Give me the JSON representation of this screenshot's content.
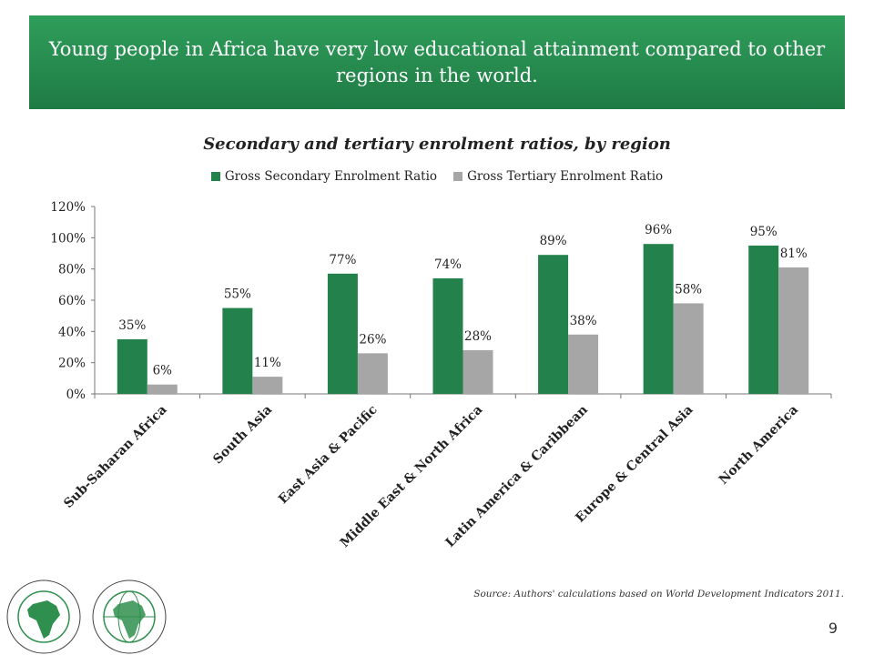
{
  "banner": {
    "title": "Young people in Africa have very low educational attainment compared to other regions in the world."
  },
  "source_note": "Source: Authors' calculations based on World Development Indicators 2011.",
  "page_number": "9",
  "logos": {
    "left_text": "BANQUE AFRICAINE DE DEVELOPPEMENT · AFRICAN DEVELOPMENT BANK",
    "right_text": "AFRICAN DEVELOPMENT FUND · FONDS AFRICAIN DE DEVELOPPEMENT"
  },
  "colors": {
    "banner": "#23864c",
    "secondary": "#23814b",
    "tertiary": "#a6a6a6"
  },
  "chart_data": {
    "type": "bar",
    "title": "Secondary and tertiary enrolment ratios, by region",
    "categories": [
      "Sub-Saharan Africa",
      "South Asia",
      "East Asia & Pacific",
      "Middle East & North Africa",
      "Latin America & Caribbean",
      "Europe & Central Asia",
      "North America"
    ],
    "series": [
      {
        "name": "Gross Secondary Enrolment Ratio",
        "values": [
          35,
          55,
          77,
          74,
          89,
          96,
          95
        ],
        "labels": [
          "35%",
          "55%",
          "77%",
          "74%",
          "89%",
          "96%",
          "95%"
        ]
      },
      {
        "name": "Gross Tertiary Enrolment Ratio",
        "values": [
          6,
          11,
          26,
          28,
          38,
          58,
          81
        ],
        "labels": [
          "6%",
          "11%",
          "26%",
          "28%",
          "38%",
          "58%",
          "81%"
        ]
      }
    ],
    "yticks": [
      "0%",
      "20%",
      "40%",
      "60%",
      "80%",
      "100%",
      "120%"
    ],
    "ylim": [
      0,
      120
    ],
    "legend_position": "top",
    "grid": false
  }
}
